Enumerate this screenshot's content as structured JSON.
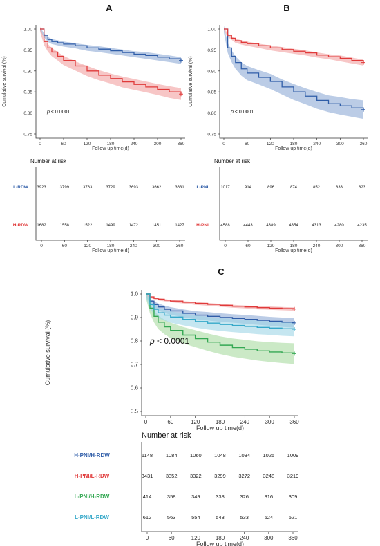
{
  "chart_data": [
    {
      "panel": "A",
      "type": "line",
      "xlabel": "Follow up time(d)",
      "ylabel": "Cumulative survival (%)",
      "xlim": [
        0,
        360
      ],
      "ylim": [
        0.75,
        1.0
      ],
      "x_ticks": [
        0,
        60,
        120,
        180,
        240,
        300,
        360
      ],
      "y_ticks": [
        "0.75",
        "0.80",
        "0.85",
        "0.90",
        "0.95",
        "1.00"
      ],
      "annotation": "p < 0.0001",
      "risk_title": "Number at risk",
      "risk_xlabel": "Follow up time(d)",
      "series": [
        {
          "name": "L-RDW",
          "color": "#2f5da8",
          "band_color": "#8eaad6",
          "x": [
            0,
            10,
            20,
            30,
            45,
            60,
            90,
            120,
            150,
            180,
            210,
            240,
            270,
            300,
            330,
            360
          ],
          "y": [
            1.0,
            0.985,
            0.975,
            0.97,
            0.967,
            0.964,
            0.96,
            0.955,
            0.952,
            0.948,
            0.944,
            0.94,
            0.937,
            0.933,
            0.929,
            0.925
          ],
          "band": [
            0.004,
            0.005,
            0.006,
            0.006,
            0.006,
            0.006,
            0.006,
            0.007,
            0.007,
            0.007,
            0.007,
            0.007,
            0.008,
            0.008,
            0.008,
            0.008
          ],
          "risk": [
            "3923",
            "3799",
            "3763",
            "3729",
            "3693",
            "3662",
            "3631"
          ]
        },
        {
          "name": "H-RDW",
          "color": "#e03a3a",
          "band_color": "#f2a0a0",
          "x": [
            0,
            10,
            20,
            30,
            45,
            60,
            90,
            120,
            150,
            180,
            210,
            240,
            270,
            300,
            330,
            360
          ],
          "y": [
            1.0,
            0.97,
            0.955,
            0.945,
            0.935,
            0.925,
            0.912,
            0.9,
            0.89,
            0.882,
            0.874,
            0.868,
            0.862,
            0.856,
            0.85,
            0.845
          ],
          "band": [
            0.006,
            0.008,
            0.009,
            0.01,
            0.01,
            0.011,
            0.011,
            0.012,
            0.012,
            0.012,
            0.013,
            0.013,
            0.013,
            0.013,
            0.014,
            0.014
          ],
          "risk": [
            "1682",
            "1558",
            "1522",
            "1499",
            "1472",
            "1451",
            "1427"
          ]
        }
      ]
    },
    {
      "panel": "B",
      "type": "line",
      "xlabel": "Follow up time(d)",
      "ylabel": "Cumulative survival (%)",
      "xlim": [
        0,
        360
      ],
      "ylim": [
        0.75,
        1.0
      ],
      "x_ticks": [
        0,
        60,
        120,
        180,
        240,
        300,
        360
      ],
      "y_ticks": [
        "0.75",
        "0.80",
        "0.85",
        "0.90",
        "0.95",
        "1.00"
      ],
      "annotation": "p < 0.0001",
      "risk_title": "Number at risk",
      "risk_xlabel": "Follow up time(d)",
      "series": [
        {
          "name": "L-PNI",
          "color": "#2f5da8",
          "band_color": "#8eaad6",
          "x": [
            0,
            10,
            20,
            30,
            45,
            60,
            90,
            120,
            150,
            180,
            210,
            240,
            270,
            300,
            330,
            360
          ],
          "y": [
            1.0,
            0.955,
            0.935,
            0.92,
            0.905,
            0.895,
            0.885,
            0.875,
            0.862,
            0.85,
            0.84,
            0.83,
            0.822,
            0.817,
            0.812,
            0.808
          ],
          "band": [
            0.008,
            0.012,
            0.014,
            0.015,
            0.016,
            0.017,
            0.017,
            0.018,
            0.018,
            0.019,
            0.019,
            0.02,
            0.02,
            0.021,
            0.021,
            0.022
          ],
          "risk": [
            "1017",
            "914",
            "896",
            "874",
            "852",
            "833",
            "823"
          ]
        },
        {
          "name": "H-PNI",
          "color": "#e03a3a",
          "band_color": "#f2a0a0",
          "x": [
            0,
            10,
            20,
            30,
            45,
            60,
            90,
            120,
            150,
            180,
            210,
            240,
            270,
            300,
            330,
            360
          ],
          "y": [
            1.0,
            0.985,
            0.978,
            0.972,
            0.968,
            0.965,
            0.96,
            0.955,
            0.951,
            0.947,
            0.943,
            0.938,
            0.934,
            0.93,
            0.925,
            0.92
          ],
          "band": [
            0.003,
            0.004,
            0.004,
            0.005,
            0.005,
            0.005,
            0.005,
            0.006,
            0.006,
            0.006,
            0.006,
            0.006,
            0.006,
            0.007,
            0.007,
            0.007
          ],
          "risk": [
            "4588",
            "4443",
            "4389",
            "4354",
            "4313",
            "4280",
            "4235"
          ]
        }
      ]
    },
    {
      "panel": "C",
      "type": "line",
      "xlabel": "Follow up time(d)",
      "ylabel": "Cumulative survival (%)",
      "xlim": [
        0,
        360
      ],
      "ylim": [
        0.5,
        1.0
      ],
      "x_ticks": [
        0,
        60,
        120,
        180,
        240,
        300,
        360
      ],
      "y_ticks": [
        "0.5",
        "0.6",
        "0.7",
        "0.8",
        "0.9",
        "1.0"
      ],
      "annotation": "p < 0.0001",
      "risk_title": "Number at risk",
      "risk_xlabel": "Follow up time(d)",
      "series": [
        {
          "name": "H-PNI/H-RDW",
          "color": "#2f5da8",
          "band_color": "#8eaad6",
          "x": [
            0,
            10,
            20,
            30,
            45,
            60,
            90,
            120,
            150,
            180,
            210,
            240,
            270,
            300,
            330,
            360
          ],
          "y": [
            1.0,
            0.97,
            0.955,
            0.945,
            0.935,
            0.928,
            0.918,
            0.91,
            0.905,
            0.9,
            0.896,
            0.892,
            0.888,
            0.884,
            0.88,
            0.877
          ],
          "band": [
            0.008,
            0.012,
            0.014,
            0.015,
            0.016,
            0.016,
            0.017,
            0.017,
            0.018,
            0.018,
            0.018,
            0.019,
            0.019,
            0.019,
            0.02,
            0.02
          ],
          "risk": [
            "1148",
            "1084",
            "1060",
            "1048",
            "1034",
            "1025",
            "1009"
          ]
        },
        {
          "name": "H-PNI/L-RDW",
          "color": "#e03a3a",
          "band_color": "#f2a0a0",
          "x": [
            0,
            10,
            20,
            30,
            45,
            60,
            90,
            120,
            150,
            180,
            210,
            240,
            270,
            300,
            330,
            360
          ],
          "y": [
            1.0,
            0.988,
            0.982,
            0.978,
            0.974,
            0.97,
            0.965,
            0.96,
            0.956,
            0.952,
            0.948,
            0.945,
            0.942,
            0.94,
            0.938,
            0.936
          ],
          "band": [
            0.003,
            0.004,
            0.004,
            0.005,
            0.005,
            0.005,
            0.005,
            0.006,
            0.006,
            0.006,
            0.006,
            0.006,
            0.007,
            0.007,
            0.007,
            0.007
          ],
          "risk": [
            "3431",
            "3352",
            "3322",
            "3299",
            "3272",
            "3248",
            "3219"
          ]
        },
        {
          "name": "L-PNI/H-RDW",
          "color": "#34a853",
          "band_color": "#a8dba0",
          "x": [
            0,
            10,
            20,
            30,
            45,
            60,
            90,
            120,
            150,
            180,
            210,
            240,
            270,
            300,
            330,
            360
          ],
          "y": [
            1.0,
            0.94,
            0.905,
            0.88,
            0.86,
            0.845,
            0.825,
            0.81,
            0.795,
            0.782,
            0.772,
            0.765,
            0.758,
            0.753,
            0.749,
            0.746
          ],
          "band": [
            0.015,
            0.022,
            0.026,
            0.029,
            0.031,
            0.033,
            0.035,
            0.036,
            0.037,
            0.038,
            0.039,
            0.04,
            0.041,
            0.042,
            0.043,
            0.044
          ],
          "risk": [
            "414",
            "358",
            "349",
            "338",
            "326",
            "316",
            "309"
          ]
        },
        {
          "name": "L-PNI/L-RDW",
          "color": "#35a8c9",
          "band_color": "#9fd6e6",
          "x": [
            0,
            10,
            20,
            30,
            45,
            60,
            90,
            120,
            150,
            180,
            210,
            240,
            270,
            300,
            330,
            360
          ],
          "y": [
            1.0,
            0.955,
            0.935,
            0.92,
            0.91,
            0.902,
            0.892,
            0.883,
            0.876,
            0.87,
            0.866,
            0.862,
            0.858,
            0.855,
            0.852,
            0.85
          ],
          "band": [
            0.012,
            0.017,
            0.02,
            0.022,
            0.023,
            0.024,
            0.025,
            0.026,
            0.027,
            0.027,
            0.028,
            0.028,
            0.029,
            0.029,
            0.03,
            0.03
          ],
          "risk": [
            "612",
            "563",
            "554",
            "543",
            "533",
            "524",
            "521"
          ]
        }
      ]
    }
  ]
}
